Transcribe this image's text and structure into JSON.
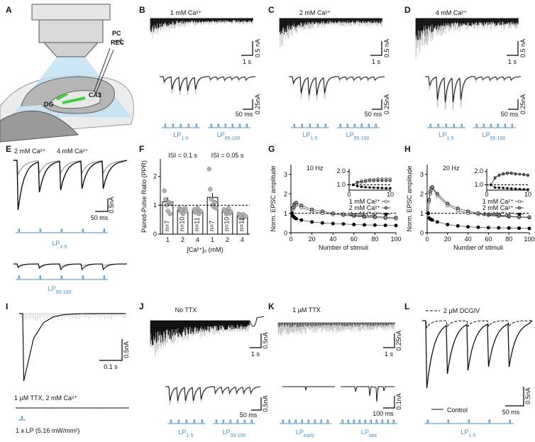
{
  "panels": {
    "A": {
      "letter": "A",
      "pc": "PC",
      "rec": "REC",
      "dg": "DG",
      "ca3": "CA3"
    },
    "B": {
      "letter": "B",
      "title": "1 mM Ca²⁺",
      "scale_y1": "0.5 nA",
      "scale_x1": "1 s",
      "scale_y2": "0.25nA",
      "scale_x2": "50 ms",
      "lp_a": {
        "main": "LP",
        "sub": "1-5"
      },
      "lp_b": {
        "main": "LP",
        "sub": "95-100"
      }
    },
    "C": {
      "letter": "C",
      "title": "2 mM Ca²⁺",
      "scale_y1": "0.5 nA",
      "scale_x1": "1 s",
      "scale_y2": "0.25nA",
      "scale_x2": "50 ms",
      "lp_a": {
        "main": "LP",
        "sub": "1-5"
      },
      "lp_b": {
        "main": "LP",
        "sub": "95-100"
      }
    },
    "D": {
      "letter": "D",
      "title": "4 mM Ca²⁺",
      "scale_y1": "0.5 nA",
      "scale_x1": "1 s",
      "scale_y2": "0.25nA",
      "scale_x2": "50 ms",
      "lp_a": {
        "main": "LP",
        "sub": "1-5"
      },
      "lp_b": {
        "main": "LP",
        "sub": "95-100"
      }
    },
    "E": {
      "letter": "E",
      "label_2mm": "2 mM Ca²⁺",
      "label_4mm": "4 mM Ca²⁺",
      "scale_y": "0.5nA",
      "scale_x": "50 ms",
      "lp_a": {
        "main": "LP",
        "sub": "1-5"
      },
      "lp_b": {
        "main": "LP",
        "sub": "95-100"
      }
    },
    "F": {
      "letter": "F"
    },
    "G": {
      "letter": "G"
    },
    "H": {
      "letter": "H"
    },
    "I": {
      "letter": "I",
      "scale_y": "0.5nA",
      "scale_x": "0.1 s",
      "condition": "1 µM TTX, 2 mM Ca²⁺",
      "stim": "1 x LP (5.16 mW/mm²)"
    },
    "J": {
      "letter": "J",
      "title": "No TTX",
      "scale_y1": "0.5nA",
      "scale_x1": "1 s",
      "scale_y2": "0.5nA",
      "scale_x2": "50 ms",
      "lp_a": {
        "main": "LP",
        "sub": "1-5"
      },
      "lp_b": {
        "main": "LP",
        "sub": "95-100"
      }
    },
    "K": {
      "letter": "K",
      "title": "1 µM TTX",
      "scale_y1": "0.25nA",
      "scale_x1": "1 s",
      "scale_y2": "0.1nA",
      "scale_x2": "100 ms",
      "lp_a": {
        "main": "LP",
        "sub": "early"
      },
      "lp_b": {
        "main": "LP",
        "sub": "late"
      }
    },
    "L": {
      "letter": "L",
      "dcgiv": "2 µM DCGIV",
      "control": "Control",
      "scale_y": "0.5nA",
      "scale_x": "50 ms",
      "lp_a": {
        "main": "LP",
        "sub": "1-5"
      }
    }
  },
  "chart_data": [
    {
      "type": "bar",
      "ylabel": "Paired-Pulse Ratio (PPR)",
      "xlabel": "[Ca²⁺]ₒ (mM)",
      "group_labels": [
        "ISI = 0.1 s",
        "ISI = 0.05 s"
      ],
      "categories": [
        "1",
        "2",
        "4",
        "1",
        "2",
        "4"
      ],
      "values": [
        1.12,
        0.82,
        0.8,
        1.27,
        0.78,
        0.63
      ],
      "errors": [
        0.15,
        0.06,
        0.05,
        0.15,
        0.05,
        0.04
      ],
      "n_labels": [
        "n=7",
        "n=10",
        "n=11",
        "n=7",
        "n=10",
        "n=11"
      ],
      "points": [
        [
          1.5,
          1.2,
          1.0,
          0.8,
          1.1,
          0.7,
          1.05
        ],
        [
          0.9,
          0.8,
          0.85,
          0.7,
          0.75,
          0.9,
          0.8
        ],
        [
          0.85,
          0.75,
          0.8,
          0.9,
          0.7,
          0.8,
          0.78
        ],
        [
          2.25,
          1.55,
          1.2,
          1.0,
          0.95,
          1.1,
          0.9
        ],
        [
          0.85,
          0.8,
          0.7,
          0.75,
          0.9,
          0.72,
          0.78
        ],
        [
          0.7,
          0.6,
          0.65,
          0.55,
          0.68,
          0.6,
          0.62
        ]
      ],
      "ylim": [
        0,
        2.6
      ],
      "yticks": [
        0,
        1,
        2
      ],
      "reference_line": 1,
      "color": "#ffffff",
      "point_color": "#b0b0b0"
    },
    {
      "type": "line",
      "title": "10 Hz",
      "xlabel": "Number of stimuli",
      "ylabel": "Norm. EPSC amplitude",
      "x": [
        1,
        2,
        3,
        4,
        5,
        10,
        20,
        30,
        40,
        50,
        60,
        70,
        80,
        90,
        100
      ],
      "series": [
        {
          "name": "1 mM Ca²⁺",
          "color": "#ffffff",
          "values": [
            1,
            1.2,
            1.3,
            1.4,
            1.45,
            1.3,
            1.1,
            1.0,
            0.95,
            0.9,
            0.85,
            0.8,
            0.78,
            0.75,
            0.72
          ]
        },
        {
          "name": "2 mM Ca²⁺",
          "color": "#8c8c8c",
          "values": [
            1,
            1.3,
            1.45,
            1.5,
            1.55,
            1.4,
            1.2,
            1.1,
            1.0,
            0.95,
            0.9,
            0.85,
            0.83,
            0.8,
            0.78
          ]
        },
        {
          "name": "4 mM Ca²⁺",
          "color": "#000000",
          "values": [
            1,
            0.85,
            0.8,
            0.75,
            0.72,
            0.65,
            0.55,
            0.5,
            0.47,
            0.45,
            0.42,
            0.4,
            0.39,
            0.38,
            0.37
          ]
        }
      ],
      "xlim": [
        0,
        100
      ],
      "xticks": [
        0,
        20,
        40,
        60,
        80,
        100
      ],
      "ylim": [
        0,
        3.5
      ],
      "yticks": [
        0,
        1,
        2,
        3
      ],
      "reference_line": 1,
      "legend": "lower right"
    },
    {
      "type": "line",
      "x": [
        1,
        2,
        3,
        4,
        5,
        6,
        7,
        8,
        9,
        10
      ],
      "series": [
        {
          "color": "#ffffff",
          "values": [
            1,
            1.2,
            1.3,
            1.35,
            1.4,
            1.4,
            1.45,
            1.45,
            1.45,
            1.45
          ]
        },
        {
          "color": "#8c8c8c",
          "values": [
            1,
            1.15,
            1.2,
            1.25,
            1.3,
            1.3,
            1.3,
            1.3,
            1.3,
            1.3
          ]
        },
        {
          "color": "#000000",
          "values": [
            1,
            0.9,
            0.85,
            0.82,
            0.8,
            0.78,
            0.77,
            0.76,
            0.75,
            0.74
          ]
        }
      ],
      "xlim": [
        0,
        10
      ],
      "xticks": [
        0,
        10
      ],
      "ylim": [
        0.6,
        2.2
      ],
      "yticks": [
        {
          "value": 1,
          "label": "1.0"
        },
        {
          "value": 2,
          "label": "2.0"
        }
      ],
      "reference_line": 1
    },
    {
      "type": "line",
      "title": "20 Hz",
      "xlabel": "Number of stimuli",
      "ylabel": "Norm. EPSC amplitude",
      "x": [
        1,
        2,
        3,
        4,
        5,
        10,
        20,
        30,
        40,
        50,
        60,
        70,
        80,
        90,
        100
      ],
      "series": [
        {
          "name": "1 mM Ca²⁺",
          "color": "#ffffff",
          "values": [
            1,
            1.6,
            2.0,
            2.2,
            2.3,
            1.9,
            1.4,
            1.15,
            1.0,
            0.95,
            0.9,
            0.85,
            0.82,
            0.8,
            0.78
          ]
        },
        {
          "name": "2 mM Ca²⁺",
          "color": "#8c8c8c",
          "values": [
            1,
            1.7,
            2.1,
            2.3,
            2.35,
            2.0,
            1.5,
            1.25,
            1.1,
            1.0,
            0.95,
            0.9,
            0.85,
            0.82,
            0.8
          ]
        },
        {
          "name": "4 mM Ca²⁺",
          "color": "#000000",
          "values": [
            1,
            0.75,
            0.7,
            0.68,
            0.65,
            0.55,
            0.42,
            0.35,
            0.3,
            0.28,
            0.26,
            0.25,
            0.24,
            0.23,
            0.22
          ]
        }
      ],
      "xlim": [
        0,
        100
      ],
      "xticks": [
        0,
        20,
        40,
        60,
        80,
        100
      ],
      "ylim": [
        0,
        3.5
      ],
      "yticks": [
        0,
        1,
        2,
        3
      ],
      "reference_line": 1,
      "legend": "lower right"
    },
    {
      "type": "line",
      "x": [
        1,
        2,
        3,
        4,
        5,
        6,
        7,
        8,
        9,
        10
      ],
      "series": [
        {
          "color": "#ffffff",
          "values": [
            1,
            1.5,
            1.7,
            1.8,
            1.85,
            1.85,
            1.8,
            1.8,
            1.75,
            1.7
          ]
        },
        {
          "color": "#8c8c8c",
          "values": [
            1,
            1.55,
            1.75,
            1.85,
            1.9,
            1.9,
            1.85,
            1.8,
            1.8,
            1.75
          ]
        },
        {
          "color": "#000000",
          "values": [
            1,
            0.8,
            0.78,
            0.76,
            0.74,
            0.72,
            0.7,
            0.68,
            0.66,
            0.65
          ]
        }
      ],
      "xlim": [
        0,
        10
      ],
      "xticks": [
        0,
        10
      ],
      "ylim": [
        0.6,
        2.2
      ],
      "yticks": [
        {
          "value": 1,
          "label": "1.0"
        },
        {
          "value": 2,
          "label": "2.0"
        }
      ],
      "reference_line": 1
    }
  ]
}
